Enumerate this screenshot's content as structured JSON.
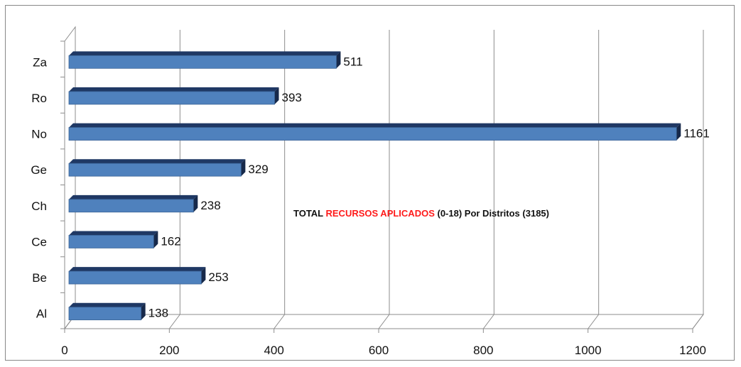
{
  "chart_data": {
    "type": "bar",
    "orientation": "horizontal",
    "categories": [
      "Al",
      "Be",
      "Ce",
      "Ch",
      "Ge",
      "No",
      "Ro",
      "Za"
    ],
    "values": [
      138,
      253,
      162,
      238,
      329,
      1161,
      393,
      511
    ],
    "xlim": [
      0,
      1200
    ],
    "x_ticks": [
      "0",
      "200",
      "400",
      "600",
      "800",
      "1000",
      "1200"
    ],
    "grid": "vertical",
    "bar_color": "#4f81bd",
    "bar_edge_color": "#1f3864",
    "annotation": {
      "part1": "TOTAL ",
      "part2": "RECURSOS APLICADOS",
      "part3": " (0-18)  Por Distritos (3185)",
      "highlight_color": "#ff1a1a"
    }
  }
}
